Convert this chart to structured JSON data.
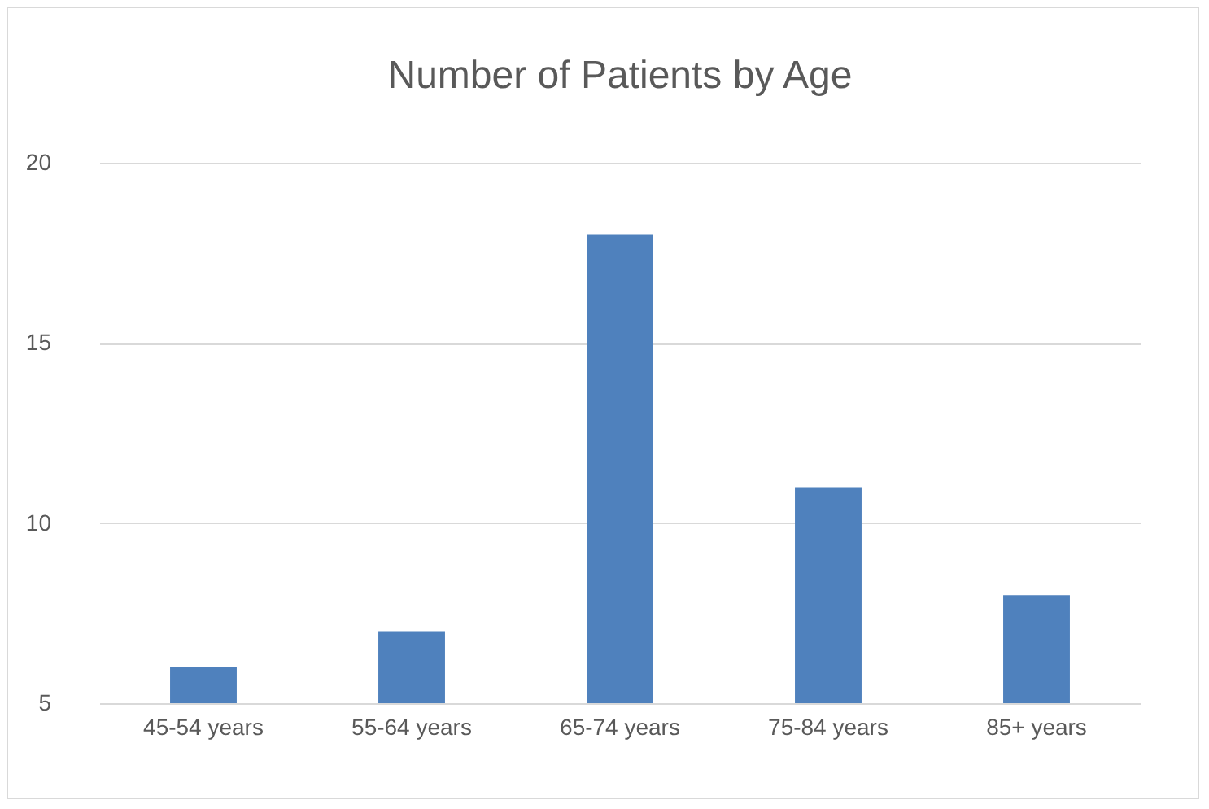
{
  "chart_data": {
    "type": "bar",
    "title": "Number of Patients by Age",
    "categories": [
      "45-54 years",
      "55-64 years",
      "65-74 years",
      "75-84 years",
      "85+ years"
    ],
    "values": [
      6,
      7,
      18,
      11,
      8
    ],
    "color": "#4f81bd",
    "ylim": [
      5,
      20
    ],
    "yticks": [
      5,
      10,
      15,
      20
    ],
    "grid": "y"
  }
}
